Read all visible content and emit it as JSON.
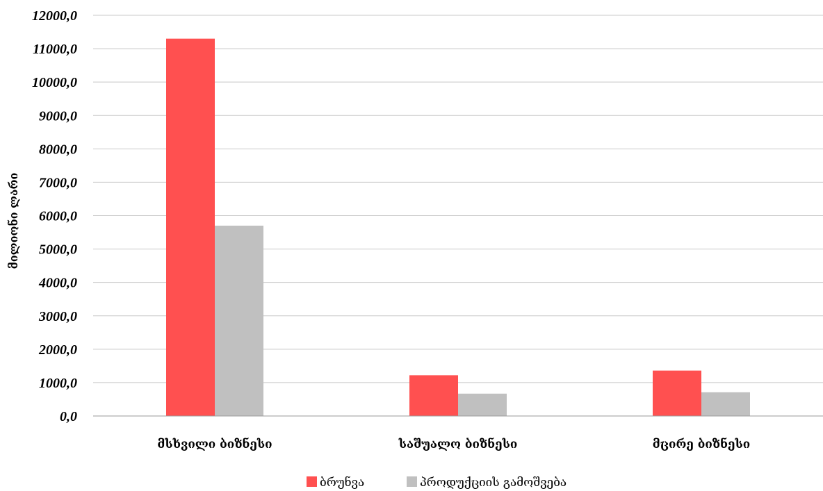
{
  "chart_data": {
    "type": "bar",
    "title": "",
    "ylabel": "მილიონი ლარი",
    "xlabel": "",
    "categories": [
      "მსხვილი ბიზნესი",
      "საშუალო ბიზნესი",
      "მცირე ბიზნესი"
    ],
    "series": [
      {
        "name": "ბრუნვა",
        "values": [
          11300,
          1220,
          1360
        ],
        "color": "#ff5050"
      },
      {
        "name": "პროდუქციის გამოშვება",
        "values": [
          5700,
          670,
          710
        ],
        "color": "#c0c0c0"
      }
    ],
    "ylim": [
      0,
      12000
    ],
    "yticks": [
      "0,0",
      "1000,0",
      "2000,0",
      "3000,0",
      "4000,0",
      "5000,0",
      "6000,0",
      "7000,0",
      "8000,0",
      "9000,0",
      "10000,0",
      "11000,0",
      "12000,0"
    ],
    "grid": true,
    "legend_position": "bottom"
  }
}
